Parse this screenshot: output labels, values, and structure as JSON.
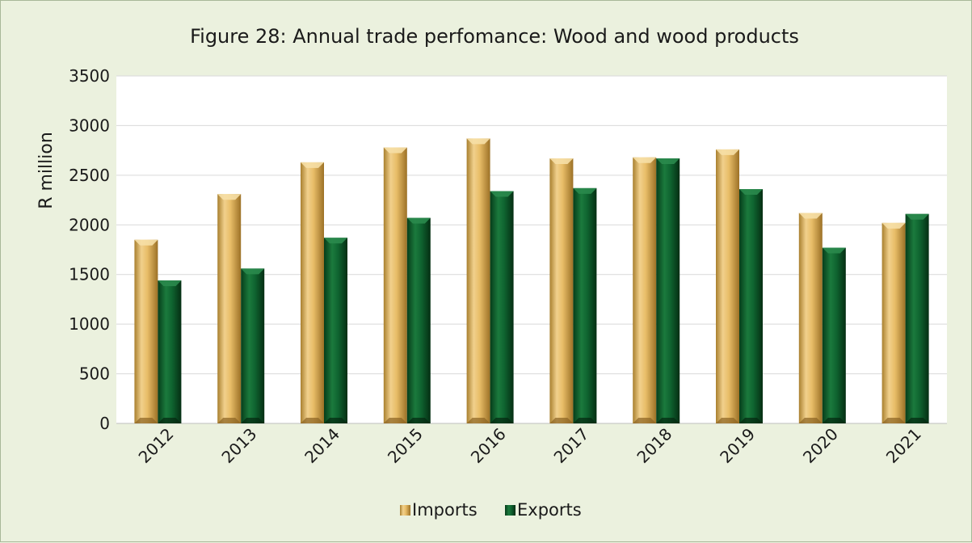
{
  "chart_data": {
    "type": "bar",
    "title": "Figure 28: Annual trade perfomance: Wood and wood products",
    "xlabel": "",
    "ylabel": "R million",
    "ylim": [
      0,
      3500
    ],
    "yticks": [
      0,
      500,
      1000,
      1500,
      2000,
      2500,
      3000,
      3500
    ],
    "categories": [
      "2012",
      "2013",
      "2014",
      "2015",
      "2016",
      "2017",
      "2018",
      "2019",
      "2020",
      "2021"
    ],
    "series": [
      {
        "name": "Imports",
        "color": "#d9a948",
        "values": [
          1850,
          2310,
          2630,
          2780,
          2870,
          2670,
          2680,
          2760,
          2120,
          2020
        ]
      },
      {
        "name": "Exports",
        "color": "#0d5a2a",
        "values": [
          1440,
          1560,
          1870,
          2070,
          2340,
          2370,
          2670,
          2360,
          1770,
          2110
        ]
      }
    ],
    "grid": true,
    "legend_position": "bottom"
  }
}
